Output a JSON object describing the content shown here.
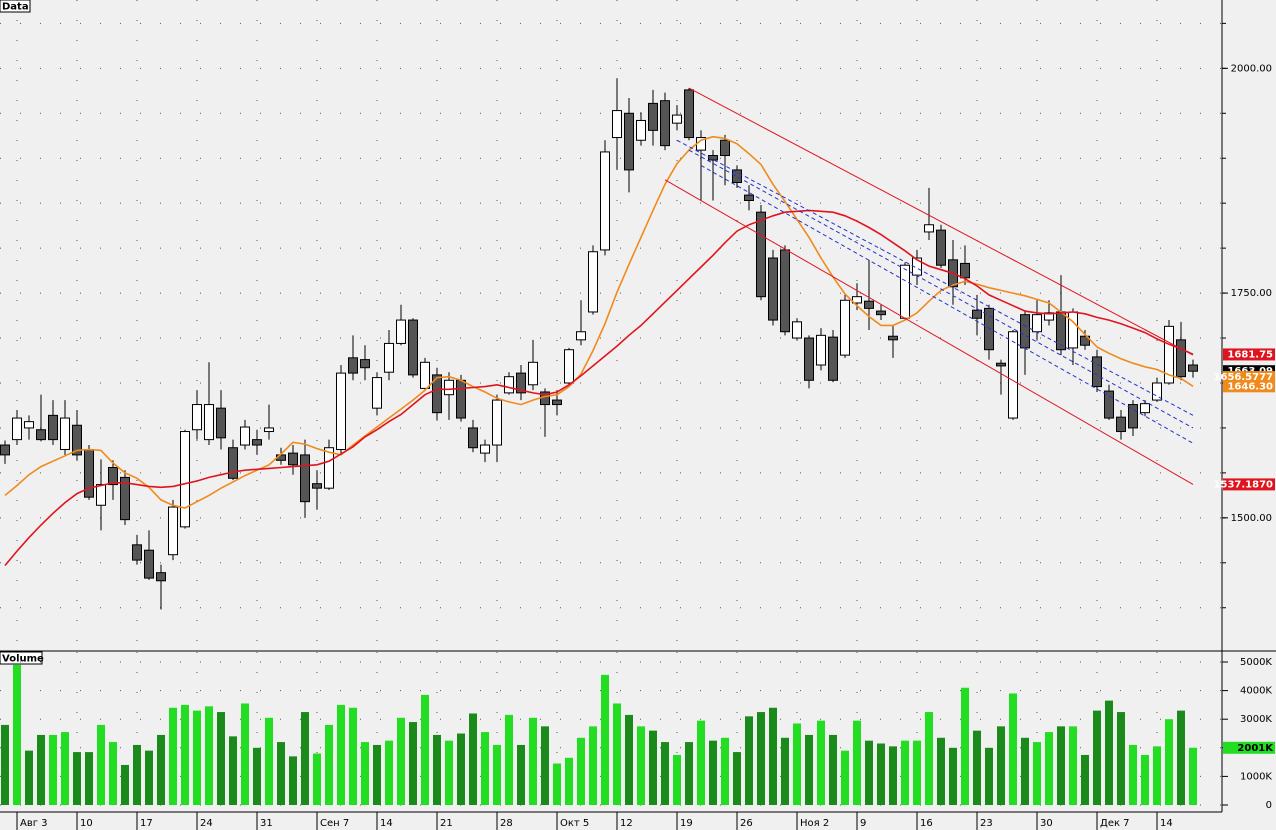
{
  "chart_data": [
    {
      "type": "candlestick",
      "title": "Data",
      "categories": [
        null,
        "Авг 3",
        null,
        null,
        null,
        null,
        "10",
        null,
        null,
        null,
        null,
        "17",
        null,
        null,
        null,
        null,
        "24",
        null,
        null,
        null,
        null,
        "31",
        null,
        null,
        null,
        null,
        "Сен 7",
        null,
        null,
        null,
        null,
        "14",
        null,
        null,
        null,
        null,
        "21",
        null,
        null,
        null,
        null,
        "28",
        null,
        null,
        null,
        null,
        "Окт 5",
        null,
        null,
        null,
        null,
        "12",
        null,
        null,
        null,
        null,
        "19",
        null,
        null,
        null,
        null,
        "26",
        null,
        null,
        null,
        null,
        "Ноя 2",
        null,
        null,
        null,
        null,
        "9",
        null,
        null,
        null,
        null,
        "16",
        null,
        null,
        null,
        null,
        "23",
        null,
        null,
        null,
        null,
        "30",
        null,
        null,
        null,
        null,
        "Дек 7",
        null,
        null,
        null,
        null,
        "14",
        null,
        null,
        null
      ],
      "open": [
        1581,
        1587,
        1600,
        1598,
        1614,
        1576,
        1603,
        1576,
        1514,
        1556,
        1545,
        1470,
        1464,
        1439,
        1459,
        1490,
        1598,
        1587,
        1622,
        1578,
        1581,
        1587,
        1596,
        1570,
        1572,
        1570,
        1538,
        1533,
        1576,
        1678,
        1676,
        1622,
        1662,
        1694,
        1720,
        1644,
        1659,
        1637,
        1653,
        1600,
        1572,
        1581,
        1639,
        1661,
        1648,
        1640,
        1631,
        1650,
        1698,
        1729,
        1798,
        1923,
        1950,
        1920,
        1961,
        1964,
        1939,
        1976,
        1909,
        1903,
        1920,
        1887,
        1859,
        1840,
        1789,
        1798,
        1700,
        1700,
        1670,
        1701,
        1681,
        1739,
        1741,
        1730,
        1702,
        1722,
        1770,
        1818,
        1820,
        1787,
        1783,
        1731,
        1733,
        1672,
        1611,
        1726,
        1707,
        1720,
        1729,
        1689,
        1702,
        1679,
        1641,
        1612,
        1626,
        1617,
        1631,
        1650,
        1698,
        1670
      ],
      "high": [
        1586,
        1620,
        1614,
        1637,
        1631,
        1631,
        1620,
        1581,
        1565,
        1564,
        1553,
        1481,
        1486,
        1448,
        1520,
        1598,
        1642,
        1673,
        1642,
        1587,
        1609,
        1598,
        1626,
        1578,
        1581,
        1587,
        1553,
        1587,
        1670,
        1703,
        1692,
        1662,
        1709,
        1737,
        1722,
        1678,
        1667,
        1662,
        1659,
        1609,
        1587,
        1637,
        1662,
        1670,
        1698,
        1644,
        1642,
        1689,
        1742,
        1803,
        1920,
        1989,
        1967,
        1951,
        1976,
        1973,
        1959,
        1978,
        1931,
        1909,
        1926,
        1892,
        1870,
        1848,
        1798,
        1803,
        1722,
        1703,
        1711,
        1709,
        1748,
        1761,
        1787,
        1737,
        1714,
        1784,
        1798,
        1867,
        1826,
        1809,
        1803,
        1748,
        1737,
        1676,
        1709,
        1731,
        1742,
        1742,
        1770,
        1733,
        1709,
        1687,
        1648,
        1620,
        1631,
        1631,
        1656,
        1720,
        1718,
        1676
      ],
      "low": [
        1560,
        1581,
        1587,
        1585,
        1581,
        1570,
        1564,
        1520,
        1486,
        1520,
        1492,
        1448,
        1431,
        1398,
        1453,
        1488,
        1587,
        1581,
        1576,
        1542,
        1576,
        1570,
        1587,
        1559,
        1548,
        1500,
        1509,
        1531,
        1570,
        1653,
        1653,
        1614,
        1653,
        1692,
        1656,
        1642,
        1609,
        1609,
        1607,
        1573,
        1562,
        1562,
        1637,
        1631,
        1642,
        1590,
        1614,
        1648,
        1692,
        1726,
        1792,
        1887,
        1862,
        1914,
        1914,
        1909,
        1931,
        1920,
        1853,
        1853,
        1870,
        1867,
        1842,
        1742,
        1714,
        1703,
        1698,
        1644,
        1664,
        1651,
        1678,
        1731,
        1709,
        1720,
        1678,
        1720,
        1759,
        1809,
        1778,
        1737,
        1759,
        1703,
        1676,
        1637,
        1609,
        1659,
        1698,
        1714,
        1681,
        1670,
        1687,
        1640,
        1609,
        1587,
        1591,
        1613,
        1629,
        1648,
        1653,
        1656
      ],
      "close": [
        1570,
        1611,
        1607,
        1587,
        1587,
        1611,
        1570,
        1523,
        1537,
        1537,
        1498,
        1453,
        1433,
        1430,
        1512,
        1596,
        1626,
        1626,
        1589,
        1544,
        1601,
        1581,
        1600,
        1564,
        1559,
        1518,
        1533,
        1578,
        1661,
        1661,
        1667,
        1656,
        1694,
        1720,
        1659,
        1673,
        1617,
        1653,
        1611,
        1578,
        1581,
        1631,
        1657,
        1639,
        1673,
        1626,
        1626,
        1687,
        1707,
        1796,
        1907,
        1953,
        1887,
        1942,
        1931,
        1914,
        1948,
        1923,
        1923,
        1898,
        1903,
        1873,
        1853,
        1746,
        1720,
        1707,
        1718,
        1653,
        1703,
        1653,
        1742,
        1746,
        1733,
        1726,
        1698,
        1781,
        1789,
        1826,
        1781,
        1757,
        1767,
        1722,
        1687,
        1669,
        1707,
        1689,
        1726,
        1728,
        1687,
        1729,
        1692,
        1646,
        1611,
        1596,
        1600,
        1627,
        1650,
        1713,
        1657,
        1663.09
      ],
      "up_color": "#ffffff",
      "down_color": "#555555",
      "series": [
        {
          "color": "#f08a1c",
          "values": [
            1525,
            1536,
            1548,
            1557,
            1563,
            1569,
            1575,
            1576,
            1575,
            1561,
            1550,
            1544,
            1534,
            1520,
            1514,
            1511,
            1518,
            1525,
            1533,
            1540,
            1547,
            1553,
            1559,
            1571,
            1584,
            1582,
            1577,
            1573,
            1570,
            1581,
            1591,
            1601,
            1611,
            1621,
            1631,
            1642,
            1656,
            1657,
            1653,
            1646,
            1640,
            1633,
            1629,
            1626,
            1631,
            1635,
            1637,
            1646,
            1660,
            1686,
            1716,
            1751,
            1782,
            1812,
            1842,
            1871,
            1894,
            1909,
            1920,
            1924,
            1922,
            1916,
            1905,
            1893,
            1871,
            1852,
            1832,
            1812,
            1789,
            1768,
            1749,
            1736,
            1724,
            1714,
            1714,
            1720,
            1728,
            1741,
            1753,
            1759,
            1763,
            1760,
            1756,
            1753,
            1750,
            1747,
            1743,
            1739,
            1729,
            1718,
            1704,
            1690,
            1683,
            1677,
            1672,
            1668,
            1665,
            1659,
            1655,
            1646.3
          ]
        },
        {
          "color": "#e0141e",
          "values": [
            1447,
            1463,
            1478,
            1492,
            1505,
            1517,
            1527,
            1533,
            1536,
            1539,
            1539,
            1537,
            1535,
            1534,
            1535,
            1538,
            1541,
            1545,
            1548,
            1551,
            1553,
            1554,
            1555,
            1556,
            1557,
            1558,
            1559,
            1563,
            1571,
            1579,
            1590,
            1598,
            1607,
            1615,
            1626,
            1637,
            1643,
            1643,
            1644,
            1645,
            1646,
            1648,
            1645,
            1642,
            1639,
            1637,
            1640,
            1648,
            1658,
            1669,
            1680,
            1691,
            1703,
            1714,
            1727,
            1740,
            1753,
            1766,
            1779,
            1792,
            1806,
            1819,
            1826,
            1831,
            1836,
            1840,
            1841,
            1842,
            1841,
            1840,
            1836,
            1830,
            1823,
            1815,
            1806,
            1797,
            1787,
            1780,
            1776,
            1772,
            1766,
            1758,
            1748,
            1742,
            1736,
            1730,
            1728,
            1727,
            1728,
            1729,
            1727,
            1723,
            1720,
            1716,
            1711,
            1706,
            1699,
            1693,
            1688,
            1681.75
          ]
        }
      ],
      "trendlines": [
        {
          "x": [
            57,
            99
          ],
          "y": [
            1978,
            1681
          ],
          "color": "#e0141e",
          "dashed": false
        },
        {
          "x": [
            55,
            99
          ],
          "y": [
            1876,
            1537.187
          ],
          "color": "#e0141e",
          "dashed": false
        },
        {
          "x": [
            56,
            99
          ],
          "y": [
            1920,
            1614
          ],
          "color": "#2233cc",
          "dashed": true
        },
        {
          "x": [
            57,
            99
          ],
          "y": [
            1909,
            1600
          ],
          "color": "#2233cc",
          "dashed": true
        },
        {
          "x": [
            58,
            99
          ],
          "y": [
            1892,
            1583
          ],
          "color": "#2233cc",
          "dashed": true
        }
      ],
      "ylim": [
        1353,
        2076
      ],
      "yticks": [
        {
          "value": 2000,
          "label": "2000.00"
        },
        {
          "value": 1750,
          "label": "1750.00"
        },
        {
          "value": 1500,
          "label": "1500.00"
        }
      ],
      "ygrid": [
        1400,
        1450,
        1500,
        1550,
        1600,
        1650,
        1700,
        1750,
        1800,
        1850,
        1900,
        1950,
        2000,
        2050
      ],
      "markers": [
        {
          "value": 1681.75,
          "color": "#e0141e"
        },
        {
          "value": 1663.09,
          "color": "#000000"
        },
        {
          "value": 1656.5777,
          "color": "#f08a1c"
        },
        {
          "value": 1646.3,
          "label": "1646.30",
          "color": "#f08a1c"
        },
        {
          "value": 1537.187,
          "label": "1537.1870",
          "color": "#e0141e"
        }
      ],
      "grid": true
    },
    {
      "type": "bar",
      "title": "Volume",
      "values": [
        2800,
        4900,
        1900,
        2450,
        2450,
        2550,
        1850,
        1850,
        2800,
        2200,
        1400,
        2100,
        1900,
        2450,
        3400,
        3500,
        3300,
        3450,
        3250,
        2400,
        3550,
        2000,
        3050,
        2200,
        1700,
        3250,
        1800,
        2800,
        3500,
        3400,
        2200,
        2100,
        2250,
        3050,
        2900,
        3850,
        2450,
        2250,
        2500,
        3200,
        2550,
        2100,
        3150,
        2100,
        3050,
        2750,
        1450,
        1650,
        2350,
        2750,
        4550,
        3550,
        3150,
        2750,
        2600,
        2200,
        1750,
        2200,
        2950,
        2250,
        2350,
        1850,
        3100,
        3250,
        3400,
        2350,
        2850,
        2450,
        2950,
        2450,
        1900,
        2950,
        2250,
        2150,
        2050,
        2250,
        2250,
        3250,
        2350,
        2000,
        4100,
        2600,
        2000,
        2750,
        3900,
        2350,
        2200,
        2550,
        2750,
        2750,
        1750,
        3300,
        3650,
        3250,
        2100,
        1750,
        2050,
        3000,
        3300,
        2001
      ],
      "up_color": "#22dd22",
      "down_color": "#1a8a1a",
      "ylim": [
        -245,
        5350
      ],
      "yticks": [
        {
          "value": 5000,
          "label": "5000K"
        },
        {
          "value": 4000,
          "label": "4000K"
        },
        {
          "value": 3000,
          "label": "3000K"
        },
        {
          "value": 2000,
          "label": "2000K"
        },
        {
          "value": 1000,
          "label": "1000K"
        },
        0
      ],
      "markers": [
        {
          "value": 2001,
          "label": "2001K",
          "color": "#22dd22"
        }
      ],
      "grid": true
    }
  ]
}
